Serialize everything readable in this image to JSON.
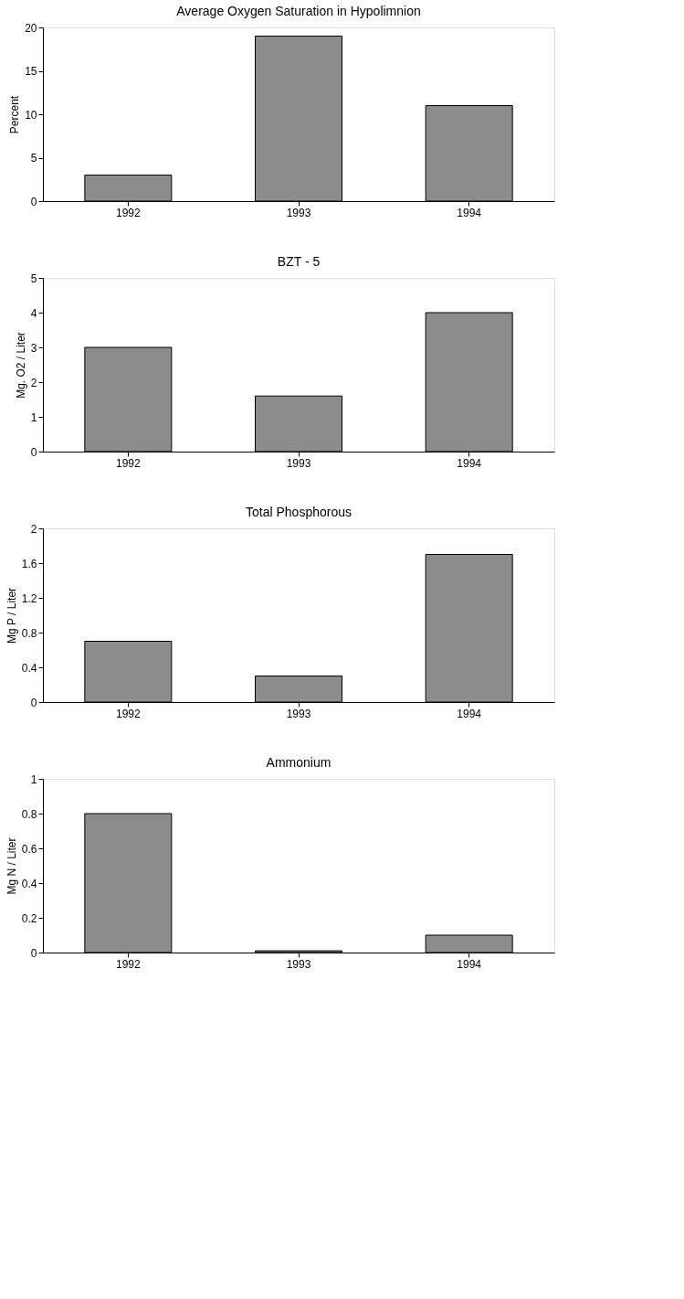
{
  "chart_data": [
    {
      "type": "bar",
      "title": "Average Oxygen Saturation in Hypolimnion",
      "ylabel": "Percent",
      "categories": [
        "1992",
        "1993",
        "1994"
      ],
      "values": [
        3,
        19,
        11
      ],
      "color": "#8c8c8c",
      "ylim": [
        0,
        20
      ],
      "yticks": [
        0,
        5,
        10,
        15,
        20
      ],
      "grid": false
    },
    {
      "type": "bar",
      "title": "BZT - 5",
      "ylabel": "Mg. O2 / Liter",
      "categories": [
        "1992",
        "1993",
        "1994"
      ],
      "values": [
        3,
        1.6,
        4
      ],
      "color": "#8c8c8c",
      "ylim": [
        0,
        5
      ],
      "yticks": [
        0,
        1,
        2,
        3,
        4,
        5
      ],
      "grid": false
    },
    {
      "type": "bar",
      "title": "Total Phosphorous",
      "ylabel": "Mg P / Liter",
      "categories": [
        "1992",
        "1993",
        "1994"
      ],
      "values": [
        0.7,
        0.3,
        1.7
      ],
      "color": "#8c8c8c",
      "ylim": [
        0,
        2
      ],
      "yticks": [
        0,
        0.4,
        0.8,
        1.2,
        1.6,
        2
      ],
      "grid": false
    },
    {
      "type": "bar",
      "title": "Ammonium",
      "ylabel": "Mg N / Liter",
      "categories": [
        "1992",
        "1993",
        "1994"
      ],
      "values": [
        0.8,
        0.01,
        0.1
      ],
      "color": "#8c8c8c",
      "ylim": [
        0,
        1
      ],
      "yticks": [
        0,
        0.2,
        0.4,
        0.6,
        0.8,
        1
      ],
      "grid": false
    }
  ]
}
